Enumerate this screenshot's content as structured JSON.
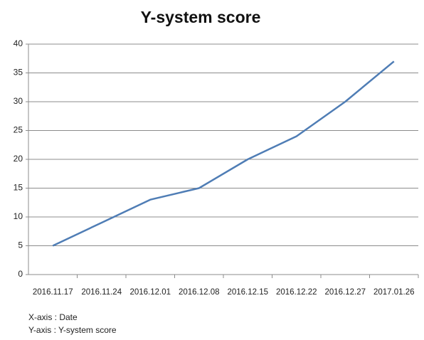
{
  "chart_data": {
    "type": "line",
    "title": "Y-system score",
    "categories": [
      "2016.11.17",
      "2016.11.24",
      "2016.12.01",
      "2016.12.08",
      "2016.12.15",
      "2016.12.22",
      "2016.12.27",
      "2017.01.26"
    ],
    "series": [
      {
        "name": "Y-system score",
        "color": "#4f7db5",
        "values": [
          5,
          9,
          13,
          15,
          20,
          24,
          30,
          37
        ]
      }
    ],
    "ylim": [
      0,
      40
    ],
    "yticks": [
      0,
      5,
      10,
      15,
      20,
      25,
      30,
      35,
      40
    ],
    "grid": true,
    "annotations": [
      "X-axis : Date",
      "Y-axis : Y-system score"
    ]
  }
}
